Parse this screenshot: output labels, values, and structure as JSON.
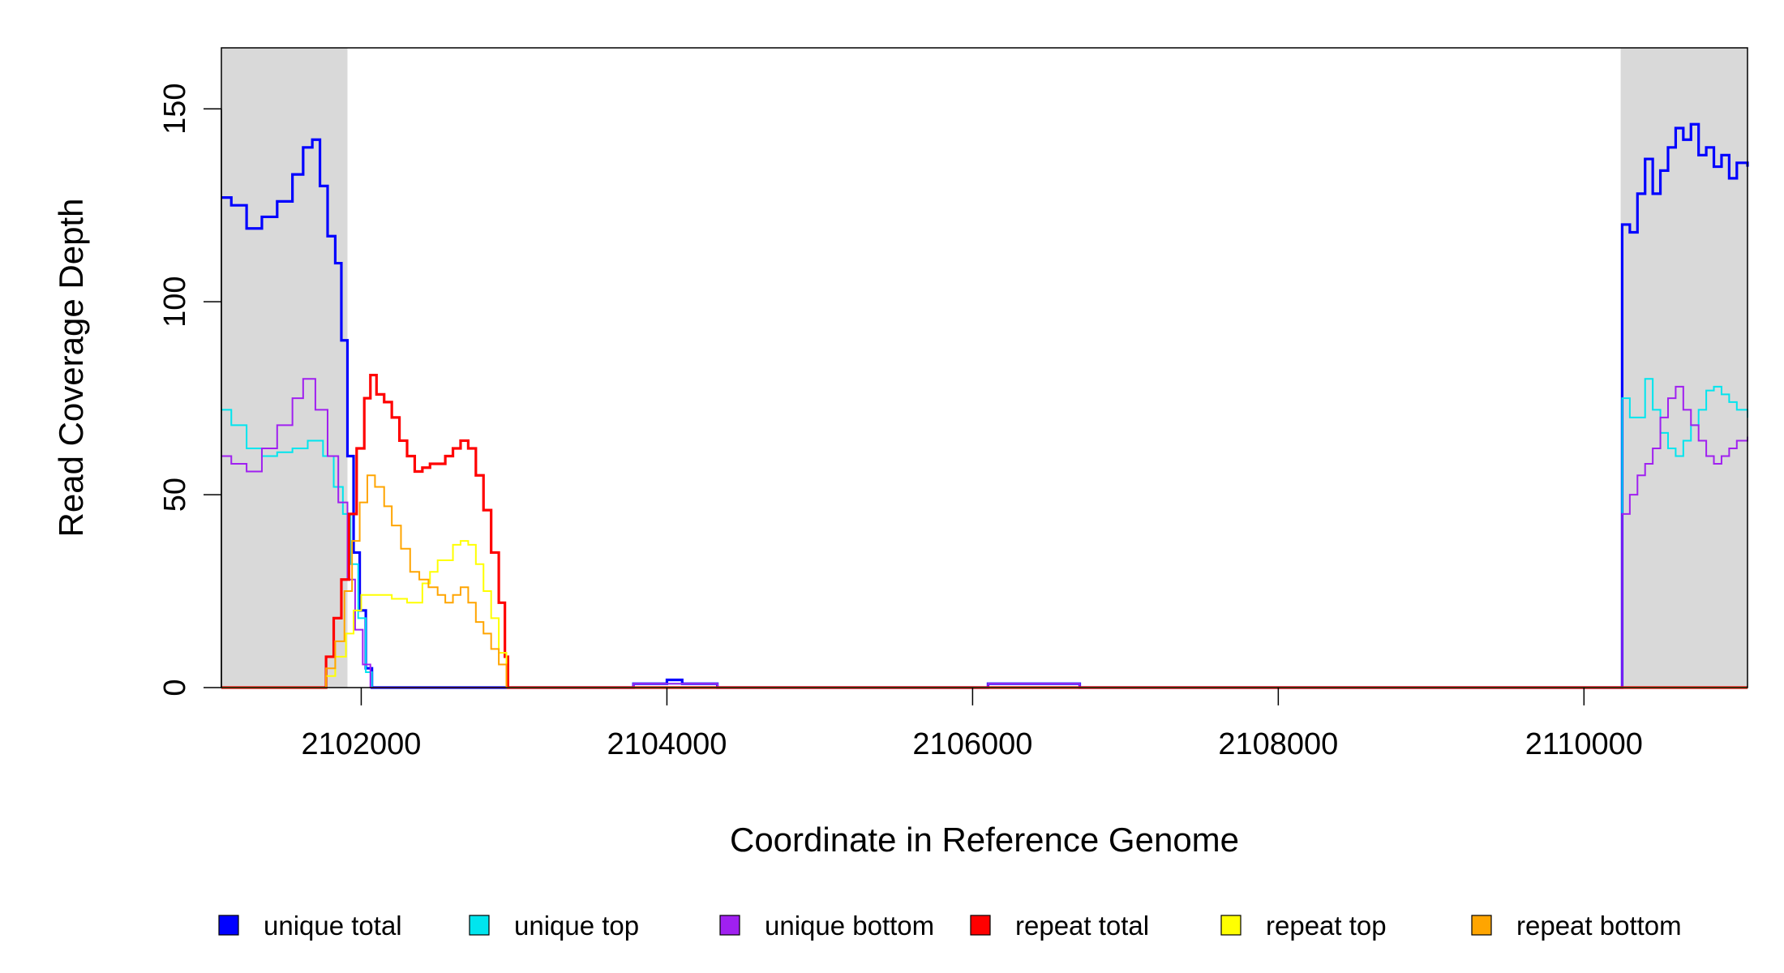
{
  "chart_data": {
    "type": "line",
    "title": "",
    "xlabel": "Coordinate in Reference Genome",
    "ylabel": "Read Coverage Depth",
    "xlim": [
      2101085,
      2111070
    ],
    "ylim": [
      0,
      160
    ],
    "x_ticks": [
      2102000,
      2104000,
      2106000,
      2108000,
      2110000
    ],
    "x_tick_labels": [
      "2102000",
      "2104000",
      "2106000",
      "2108000",
      "2110000"
    ],
    "y_ticks": [
      0,
      50,
      100,
      150
    ],
    "y_tick_labels": [
      "0",
      "50",
      "100",
      "150"
    ],
    "grid": false,
    "legend_position": "bottom",
    "shaded_regions": [
      {
        "x_start": 2101085,
        "x_end": 2101910,
        "color": "#d9d9d9"
      },
      {
        "x_start": 2110240,
        "x_end": 2111070,
        "color": "#d9d9d9"
      }
    ],
    "series": [
      {
        "name": "unique total",
        "color": "#0000ff",
        "points": [
          [
            2101085,
            127
          ],
          [
            2101150,
            125
          ],
          [
            2101250,
            119
          ],
          [
            2101350,
            122
          ],
          [
            2101450,
            126
          ],
          [
            2101550,
            133
          ],
          [
            2101620,
            140
          ],
          [
            2101680,
            142
          ],
          [
            2101730,
            130
          ],
          [
            2101780,
            117
          ],
          [
            2101830,
            110
          ],
          [
            2101870,
            90
          ],
          [
            2101910,
            60
          ],
          [
            2101950,
            35
          ],
          [
            2101990,
            20
          ],
          [
            2102030,
            5
          ],
          [
            2102070,
            0
          ],
          [
            2103780,
            0
          ],
          [
            2103781,
            1
          ],
          [
            2104000,
            2
          ],
          [
            2104100,
            1
          ],
          [
            2104330,
            0
          ],
          [
            2106100,
            0
          ],
          [
            2106101,
            1
          ],
          [
            2106700,
            1
          ],
          [
            2106701,
            0
          ],
          [
            2110240,
            0
          ],
          [
            2110250,
            120
          ],
          [
            2110300,
            118
          ],
          [
            2110350,
            128
          ],
          [
            2110400,
            137
          ],
          [
            2110450,
            128
          ],
          [
            2110500,
            134
          ],
          [
            2110550,
            140
          ],
          [
            2110600,
            145
          ],
          [
            2110650,
            142
          ],
          [
            2110700,
            146
          ],
          [
            2110750,
            138
          ],
          [
            2110800,
            140
          ],
          [
            2110850,
            135
          ],
          [
            2110900,
            138
          ],
          [
            2110950,
            132
          ],
          [
            2111000,
            136
          ],
          [
            2111070,
            135
          ]
        ]
      },
      {
        "name": "unique top",
        "color": "#00e5ee",
        "points": [
          [
            2101085,
            72
          ],
          [
            2101150,
            68
          ],
          [
            2101250,
            62
          ],
          [
            2101350,
            60
          ],
          [
            2101450,
            61
          ],
          [
            2101550,
            62
          ],
          [
            2101650,
            64
          ],
          [
            2101750,
            60
          ],
          [
            2101820,
            52
          ],
          [
            2101880,
            45
          ],
          [
            2101930,
            32
          ],
          [
            2101980,
            18
          ],
          [
            2102030,
            4
          ],
          [
            2102070,
            0
          ],
          [
            2103780,
            0
          ],
          [
            2103781,
            1
          ],
          [
            2104330,
            1
          ],
          [
            2104331,
            0
          ],
          [
            2106100,
            0
          ],
          [
            2106101,
            1
          ],
          [
            2106700,
            1
          ],
          [
            2106701,
            0
          ],
          [
            2110240,
            0
          ],
          [
            2110250,
            75
          ],
          [
            2110300,
            70
          ],
          [
            2110400,
            80
          ],
          [
            2110450,
            72
          ],
          [
            2110500,
            66
          ],
          [
            2110550,
            62
          ],
          [
            2110600,
            60
          ],
          [
            2110650,
            64
          ],
          [
            2110700,
            68
          ],
          [
            2110750,
            72
          ],
          [
            2110800,
            77
          ],
          [
            2110850,
            78
          ],
          [
            2110900,
            76
          ],
          [
            2110950,
            74
          ],
          [
            2111000,
            72
          ],
          [
            2111070,
            70
          ]
        ]
      },
      {
        "name": "unique bottom",
        "color": "#a020f0",
        "points": [
          [
            2101085,
            60
          ],
          [
            2101150,
            58
          ],
          [
            2101250,
            56
          ],
          [
            2101350,
            62
          ],
          [
            2101450,
            68
          ],
          [
            2101550,
            75
          ],
          [
            2101620,
            80
          ],
          [
            2101700,
            72
          ],
          [
            2101780,
            60
          ],
          [
            2101850,
            48
          ],
          [
            2101910,
            28
          ],
          [
            2101960,
            15
          ],
          [
            2102010,
            6
          ],
          [
            2102060,
            0
          ],
          [
            2103780,
            0
          ],
          [
            2103781,
            1
          ],
          [
            2104330,
            1
          ],
          [
            2104331,
            0
          ],
          [
            2106100,
            0
          ],
          [
            2106101,
            1
          ],
          [
            2106700,
            1
          ],
          [
            2106701,
            0
          ],
          [
            2110240,
            0
          ],
          [
            2110250,
            45
          ],
          [
            2110300,
            50
          ],
          [
            2110350,
            55
          ],
          [
            2110400,
            58
          ],
          [
            2110450,
            62
          ],
          [
            2110500,
            70
          ],
          [
            2110550,
            75
          ],
          [
            2110600,
            78
          ],
          [
            2110650,
            72
          ],
          [
            2110700,
            68
          ],
          [
            2110750,
            64
          ],
          [
            2110800,
            60
          ],
          [
            2110850,
            58
          ],
          [
            2110900,
            60
          ],
          [
            2110950,
            62
          ],
          [
            2111000,
            64
          ],
          [
            2111070,
            65
          ]
        ]
      },
      {
        "name": "repeat total",
        "color": "#ff0000",
        "points": [
          [
            2101085,
            0
          ],
          [
            2101760,
            0
          ],
          [
            2101770,
            8
          ],
          [
            2101820,
            18
          ],
          [
            2101870,
            28
          ],
          [
            2101920,
            45
          ],
          [
            2101970,
            62
          ],
          [
            2102020,
            75
          ],
          [
            2102060,
            81
          ],
          [
            2102100,
            76
          ],
          [
            2102150,
            74
          ],
          [
            2102200,
            70
          ],
          [
            2102250,
            64
          ],
          [
            2102300,
            60
          ],
          [
            2102350,
            56
          ],
          [
            2102400,
            57
          ],
          [
            2102450,
            58
          ],
          [
            2102500,
            58
          ],
          [
            2102550,
            60
          ],
          [
            2102600,
            62
          ],
          [
            2102650,
            64
          ],
          [
            2102700,
            62
          ],
          [
            2102750,
            55
          ],
          [
            2102800,
            46
          ],
          [
            2102850,
            35
          ],
          [
            2102900,
            22
          ],
          [
            2102940,
            8
          ],
          [
            2102960,
            0
          ],
          [
            2111070,
            0
          ]
        ]
      },
      {
        "name": "repeat top",
        "color": "#ffff00",
        "points": [
          [
            2101085,
            0
          ],
          [
            2101760,
            0
          ],
          [
            2101770,
            3
          ],
          [
            2101830,
            8
          ],
          [
            2101900,
            14
          ],
          [
            2101950,
            20
          ],
          [
            2102000,
            24
          ],
          [
            2102100,
            24
          ],
          [
            2102200,
            23
          ],
          [
            2102300,
            22
          ],
          [
            2102400,
            27
          ],
          [
            2102450,
            30
          ],
          [
            2102500,
            33
          ],
          [
            2102600,
            37
          ],
          [
            2102650,
            38
          ],
          [
            2102700,
            37
          ],
          [
            2102750,
            32
          ],
          [
            2102800,
            25
          ],
          [
            2102850,
            18
          ],
          [
            2102900,
            9
          ],
          [
            2102950,
            0
          ],
          [
            2111070,
            0
          ]
        ]
      },
      {
        "name": "repeat bottom",
        "color": "#ffa500",
        "points": [
          [
            2101085,
            0
          ],
          [
            2101760,
            0
          ],
          [
            2101770,
            5
          ],
          [
            2101830,
            12
          ],
          [
            2101890,
            25
          ],
          [
            2101940,
            38
          ],
          [
            2101990,
            48
          ],
          [
            2102040,
            55
          ],
          [
            2102090,
            52
          ],
          [
            2102150,
            47
          ],
          [
            2102200,
            42
          ],
          [
            2102260,
            36
          ],
          [
            2102320,
            30
          ],
          [
            2102380,
            28
          ],
          [
            2102440,
            26
          ],
          [
            2102500,
            24
          ],
          [
            2102550,
            22
          ],
          [
            2102600,
            24
          ],
          [
            2102650,
            26
          ],
          [
            2102700,
            22
          ],
          [
            2102750,
            17
          ],
          [
            2102800,
            14
          ],
          [
            2102850,
            10
          ],
          [
            2102900,
            6
          ],
          [
            2102950,
            0
          ],
          [
            2111070,
            0
          ]
        ]
      }
    ]
  }
}
